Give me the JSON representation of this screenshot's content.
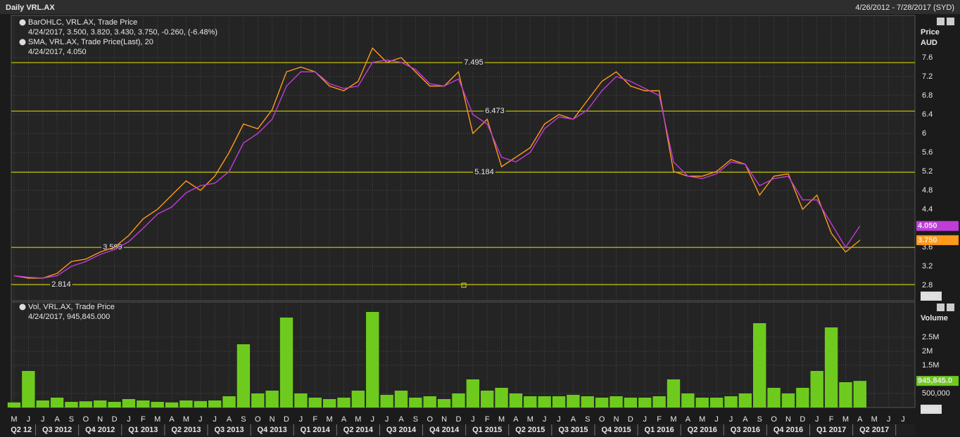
{
  "header": {
    "title": "Daily VRL.AX",
    "range": "4/26/2012 - 7/28/2017 (SYD)"
  },
  "chart_data": [
    {
      "type": "line",
      "y_label_1": "Price",
      "y_label_2": "AUD",
      "auto": "Auto",
      "categories": [
        "M",
        "J",
        "J",
        "A",
        "S",
        "O",
        "N",
        "D",
        "J",
        "F",
        "M",
        "A",
        "M",
        "J",
        "J",
        "A",
        "S",
        "O",
        "N",
        "D",
        "J",
        "F",
        "M",
        "A",
        "M",
        "J",
        "J",
        "A",
        "S",
        "O",
        "N",
        "D",
        "J",
        "F",
        "M",
        "A",
        "M",
        "J",
        "J",
        "A",
        "S",
        "O",
        "N",
        "D",
        "J",
        "F",
        "M",
        "A",
        "M",
        "J",
        "J",
        "A",
        "S",
        "O",
        "N",
        "D",
        "J",
        "F",
        "M",
        "A",
        "M",
        "J",
        "J"
      ],
      "quarters": [
        "Q2 12",
        "Q3 2012",
        "Q4 2012",
        "Q1 2013",
        "Q2 2013",
        "Q3 2013",
        "Q4 2013",
        "Q1 2014",
        "Q2 2014",
        "Q3 2014",
        "Q4 2014",
        "Q1 2015",
        "Q2 2015",
        "Q3 2015",
        "Q4 2015",
        "Q1 2016",
        "Q2 2016",
        "Q3 2016",
        "Q4 2016",
        "Q1 2017",
        "Q2 2017"
      ],
      "ylim": [
        2.474,
        8.489
      ],
      "yticks": [
        2.8,
        3.2,
        3.6,
        4.4,
        4.8,
        5.2,
        5.6,
        6,
        6.4,
        6.8,
        7.2,
        7.6
      ],
      "grid": true,
      "hlines": [
        7.495,
        6.473,
        5.184,
        3.599,
        2.814
      ],
      "hline_color": "#e6e600",
      "series": [
        {
          "name": "BarOHLC, VRL.AX, Trade Price",
          "legend_detail": "4/24/2017, 3.500, 3.820, 3.430, 3.750, ",
          "legend_change": "-0.260, (-6.48%)",
          "last_label": "3.750",
          "color": "#ff9a1a",
          "values": [
            3.0,
            2.95,
            2.95,
            3.05,
            3.3,
            3.35,
            3.5,
            3.6,
            3.85,
            4.2,
            4.4,
            4.7,
            5.0,
            4.8,
            5.1,
            5.6,
            6.2,
            6.1,
            6.5,
            7.3,
            7.4,
            7.3,
            7.0,
            6.9,
            7.1,
            7.8,
            7.5,
            7.6,
            7.3,
            7.0,
            7.0,
            7.3,
            6.0,
            6.3,
            5.3,
            5.5,
            5.7,
            6.2,
            6.4,
            6.3,
            6.7,
            7.1,
            7.3,
            7.0,
            6.9,
            6.9,
            5.2,
            5.1,
            5.1,
            5.2,
            5.45,
            5.35,
            4.7,
            5.1,
            5.15,
            4.4,
            4.7,
            3.9,
            3.5,
            3.75,
            null,
            null,
            null
          ]
        },
        {
          "name": "SMA, VRL.AX, Trade Price(Last), 20",
          "legend_detail": "4/24/2017, 4.050",
          "last_label": "4.050",
          "color": "#c03cd8",
          "values": [
            3.0,
            2.97,
            2.95,
            3.0,
            3.2,
            3.3,
            3.45,
            3.55,
            3.72,
            4.0,
            4.3,
            4.45,
            4.75,
            4.9,
            4.95,
            5.2,
            5.8,
            6.0,
            6.3,
            7.0,
            7.3,
            7.3,
            7.05,
            6.95,
            7.0,
            7.5,
            7.55,
            7.5,
            7.35,
            7.05,
            7.0,
            7.15,
            6.4,
            6.2,
            5.5,
            5.4,
            5.6,
            6.1,
            6.35,
            6.3,
            6.5,
            6.9,
            7.2,
            7.1,
            6.95,
            6.8,
            5.4,
            5.1,
            5.05,
            5.15,
            5.4,
            5.35,
            4.9,
            5.05,
            5.1,
            4.6,
            4.6,
            4.1,
            3.6,
            4.05,
            null,
            null,
            null
          ]
        }
      ]
    },
    {
      "type": "bar",
      "y_label": "Volume",
      "auto": "Auto",
      "ylim": [
        0,
        3750000
      ],
      "yticks": [
        {
          "value": 500000,
          "label": "500,000"
        },
        {
          "value": 1500000,
          "label": "1.5M"
        },
        {
          "value": 2000000,
          "label": "2M"
        },
        {
          "value": 2500000,
          "label": "2.5M"
        }
      ],
      "grid": true,
      "series": [
        {
          "name": "Vol, VRL.AX, Trade Price",
          "legend_detail": "4/24/2017, 945,845.000",
          "last_label": "945,845.0",
          "color": "#6ecb1e",
          "values": [
            180000,
            1300000,
            250000,
            350000,
            200000,
            220000,
            250000,
            200000,
            300000,
            250000,
            200000,
            180000,
            250000,
            230000,
            250000,
            400000,
            2250000,
            500000,
            600000,
            3200000,
            500000,
            350000,
            300000,
            350000,
            600000,
            3400000,
            450000,
            600000,
            350000,
            400000,
            300000,
            500000,
            1000000,
            600000,
            700000,
            500000,
            400000,
            400000,
            400000,
            450000,
            400000,
            350000,
            400000,
            350000,
            350000,
            400000,
            1000000,
            500000,
            350000,
            350000,
            400000,
            500000,
            3000000,
            700000,
            500000,
            700000,
            1300000,
            2850000,
            900000,
            945845,
            null,
            null,
            null
          ]
        }
      ]
    }
  ]
}
